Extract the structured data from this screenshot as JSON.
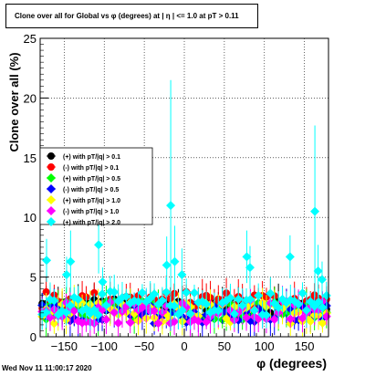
{
  "title": "Clone  over all for Global vs φ (degrees) at | η | <= 1.0 at pT > 0.11",
  "timestamp": "Wed Nov 11 11:00:17 2020",
  "chart_data": {
    "type": "scatter",
    "xlabel": "φ (degrees)",
    "ylabel": "Clone  over all (%)",
    "xlim": [
      -180,
      180
    ],
    "ylim": [
      0,
      25
    ],
    "x_ticks": [
      -150,
      -100,
      -50,
      0,
      50,
      100,
      150
    ],
    "y_ticks": [
      0,
      5,
      10,
      15,
      20,
      25
    ],
    "x_tick_labels": [
      "−150",
      "−100",
      "−50",
      "0",
      "50",
      "100",
      "150"
    ],
    "y_tick_labels": [
      "0",
      "5",
      "10",
      "15",
      "20",
      "25"
    ],
    "grid": true,
    "legend_position": "left",
    "bins": 72,
    "series": [
      {
        "name": "(+) with pT/|q| > 0.1",
        "color": "#000000",
        "marker": "circle",
        "base": 2.6,
        "amp": 0.6
      },
      {
        "name": "(-) with pT/|q| > 0.1",
        "color": "#ff0000",
        "marker": "circle",
        "base": 3.0,
        "amp": 0.8
      },
      {
        "name": "(+) with pT/|q| > 0.5",
        "color": "#00ff00",
        "marker": "diamond",
        "base": 2.2,
        "amp": 0.8
      },
      {
        "name": "(-) with pT/|q| > 0.5",
        "color": "#0000ff",
        "marker": "diamond",
        "base": 1.9,
        "amp": 0.8
      },
      {
        "name": "(+) with pT/|q| > 1.0",
        "color": "#ffff00",
        "marker": "diamond",
        "base": 2.0,
        "amp": 0.9
      },
      {
        "name": "(-) with pT/|q| > 1.0",
        "color": "#ff00ff",
        "marker": "diamond",
        "base": 2.1,
        "amp": 1.0
      },
      {
        "name": "(+) with pT/|q| > 2.0",
        "color": "#00ffff",
        "marker": "diamond",
        "base": 2.8,
        "amp": 1.0,
        "highlights": [
          {
            "x": -172,
            "y": 6.4,
            "err": 1.8
          },
          {
            "x": -147,
            "y": 5.2,
            "err": 1.5
          },
          {
            "x": -142,
            "y": 6.3,
            "err": 2.6
          },
          {
            "x": -107,
            "y": 7.7,
            "err": 2.4
          },
          {
            "x": -102,
            "y": 4.6,
            "err": 1.2
          },
          {
            "x": -22,
            "y": 6.0,
            "err": 2.4
          },
          {
            "x": -17,
            "y": 11.0,
            "err": 10.5
          },
          {
            "x": -12,
            "y": 6.3,
            "err": 3.0
          },
          {
            "x": -3,
            "y": 5.2,
            "err": 2.2
          },
          {
            "x": 78,
            "y": 6.7,
            "err": 2.2
          },
          {
            "x": 82,
            "y": 5.8,
            "err": 1.8
          },
          {
            "x": 132,
            "y": 6.7,
            "err": 1.8
          },
          {
            "x": 163,
            "y": 10.5,
            "err": 7.2
          },
          {
            "x": 167,
            "y": 5.5,
            "err": 2.2
          },
          {
            "x": 172,
            "y": 4.8,
            "err": 1.5
          }
        ]
      }
    ]
  }
}
